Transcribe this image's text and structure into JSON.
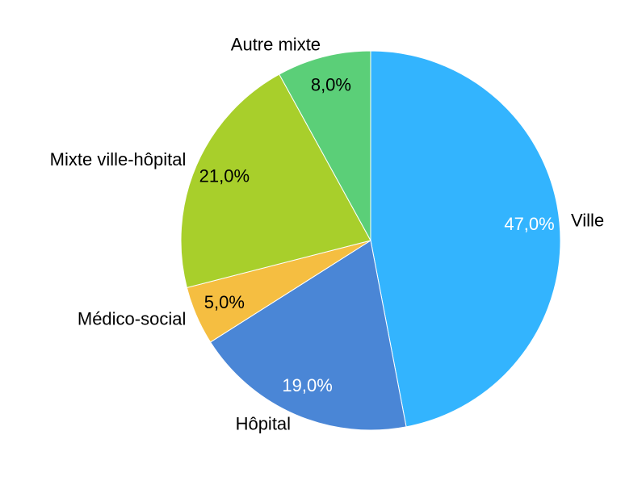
{
  "chart_data": {
    "type": "pie",
    "categories": [
      "Ville",
      "Hôpital",
      "Médico-social",
      "Mixte ville-hôpital",
      "Autre mixte"
    ],
    "values": [
      47,
      19,
      5,
      21,
      8
    ],
    "value_labels": [
      "47,0%",
      "19,0%",
      "5,0%",
      "21,0%",
      "8,0%"
    ],
    "colors": [
      "#33b4fe",
      "#4a86d6",
      "#f5be41",
      "#a8cf2b",
      "#5bcf78"
    ]
  }
}
